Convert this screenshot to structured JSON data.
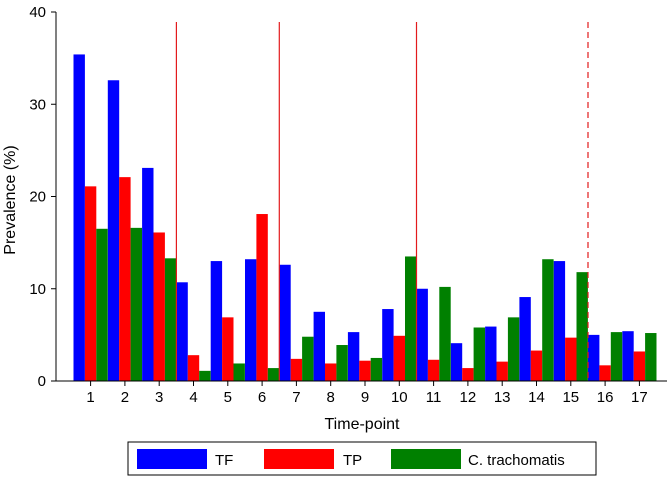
{
  "chart_data": {
    "type": "bar",
    "title": "",
    "xlabel": "Time-point",
    "ylabel": "Prevalence (%)",
    "ylim": [
      0,
      40
    ],
    "yticks": [
      0,
      10,
      20,
      30,
      40
    ],
    "categories": [
      "1",
      "2",
      "3",
      "4",
      "5",
      "6",
      "7",
      "8",
      "9",
      "10",
      "11",
      "12",
      "13",
      "14",
      "15",
      "16",
      "17"
    ],
    "series": [
      {
        "name": "TF",
        "color": "#0000ff",
        "values": [
          35.4,
          32.6,
          23.1,
          10.7,
          13.0,
          13.2,
          12.6,
          7.5,
          5.3,
          7.8,
          10.0,
          4.1,
          5.9,
          9.1,
          13.0,
          5.0,
          5.4
        ]
      },
      {
        "name": "TP",
        "color": "#ff0000",
        "values": [
          21.1,
          22.1,
          16.1,
          2.8,
          6.9,
          18.1,
          2.4,
          1.9,
          2.2,
          4.9,
          2.3,
          1.4,
          2.1,
          3.3,
          4.7,
          1.7,
          3.2
        ]
      },
      {
        "name": "C. trachomatis",
        "color": "#008000",
        "values": [
          16.5,
          16.6,
          13.3,
          1.1,
          1.9,
          1.4,
          4.8,
          3.9,
          2.5,
          13.5,
          10.2,
          5.8,
          6.9,
          13.2,
          11.8,
          5.3,
          5.2
        ]
      }
    ],
    "reference_lines": [
      {
        "after_category": "3",
        "style": "solid",
        "color": "#e31a1c"
      },
      {
        "after_category": "6",
        "style": "solid",
        "color": "#e31a1c"
      },
      {
        "after_category": "10",
        "style": "solid",
        "color": "#e31a1c"
      },
      {
        "after_category": "15",
        "style": "dashed",
        "color": "#e31a1c"
      }
    ],
    "grid": false,
    "legend_position": "bottom"
  }
}
